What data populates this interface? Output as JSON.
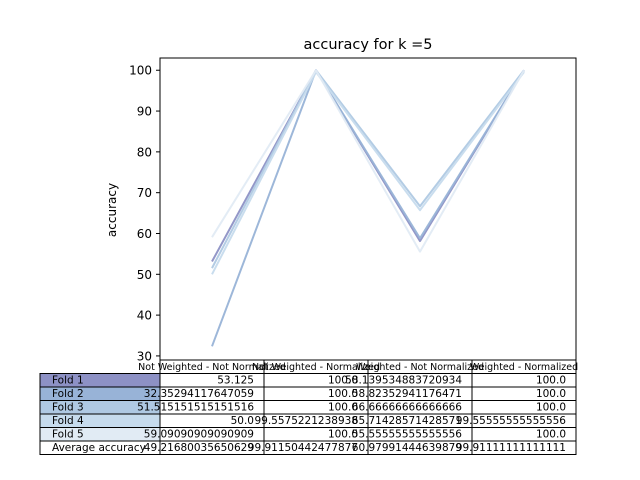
{
  "chart_data": {
    "type": "line",
    "title": "accuracy for k =5",
    "xlabel": "",
    "ylabel": "accuracy",
    "ylim": [
      29,
      103
    ],
    "yticks": [
      30,
      40,
      50,
      60,
      70,
      80,
      90,
      100
    ],
    "grid": false,
    "legend": "table-below",
    "categories": [
      "Not Weighted - Not Normalized",
      "Not Weighted - Normalized",
      "Weighted - Not Normalized",
      "Weighted - Normalized"
    ],
    "series": [
      {
        "name": "Fold 1",
        "color": "#8d91c5",
        "values": [
          53.125,
          100.0,
          58.139534883720934,
          100.0
        ],
        "labels": [
          "53.125",
          "100.0",
          "58.139534883720934",
          "100.0"
        ]
      },
      {
        "name": "Fold 2",
        "color": "#98b3d7",
        "values": [
          32.35294117647059,
          100.0,
          58.82352941176471,
          100.0
        ],
        "labels": [
          "32.35294117647059",
          "100.0",
          "58.82352941176471",
          "100.0"
        ]
      },
      {
        "name": "Fold 3",
        "color": "#afc9e3",
        "values": [
          51.515151515151516,
          100.0,
          66.66666666666666,
          100.0
        ],
        "labels": [
          "51.515151515151516",
          "100.0",
          "66.66666666666666",
          "100.0"
        ]
      },
      {
        "name": "Fold 4",
        "color": "#c6dbed",
        "values": [
          50.0,
          99.5575221238938,
          65.71428571428571,
          99.55555555555556
        ],
        "labels": [
          "50.0",
          "99.5575221238938",
          "65.71428571428571",
          "99.55555555555556"
        ]
      },
      {
        "name": "Fold 5",
        "color": "#e1ebf4",
        "values": [
          59.09090909090909,
          100.0,
          55.55555555555556,
          100.0
        ],
        "labels": [
          "59.09090909090909",
          "100.0",
          "55.55555555555556",
          "100.0"
        ]
      }
    ],
    "average": {
      "name": "Average accuracy",
      "color": "#ffffff",
      "labels": [
        "49.21680035650629",
        "99.91150442477877",
        "60.97991444639879",
        "99.91111111111111"
      ]
    }
  }
}
